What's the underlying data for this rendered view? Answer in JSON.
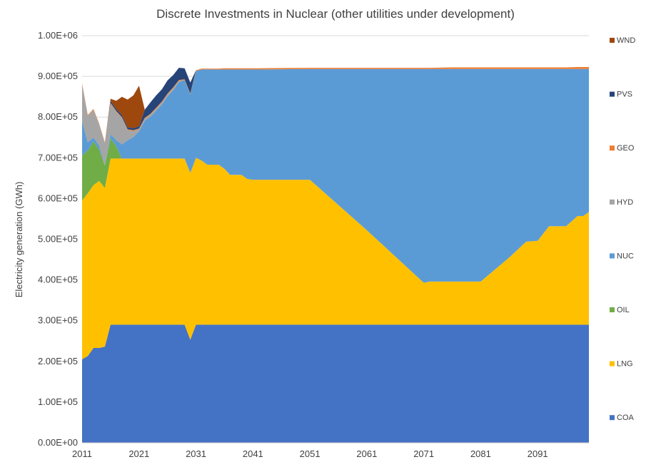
{
  "chart_data": {
    "type": "area",
    "stacked": true,
    "title": "Discrete Investments in Nuclear (other utilities under development)",
    "ylabel": "Electricity generation (GWh)",
    "xlabel": "",
    "ylim": [
      0,
      1000000
    ],
    "yticks": [
      "0.00E+00",
      "1.00E+05",
      "2.00E+05",
      "3.00E+05",
      "4.00E+05",
      "5.00E+05",
      "6.00E+05",
      "7.00E+05",
      "8.00E+05",
      "9.00E+05",
      "1.00E+06"
    ],
    "xticks": [
      "2011",
      "2021",
      "2031",
      "2041",
      "2051",
      "2061",
      "2071",
      "2081",
      "2091"
    ],
    "grid": "horizontal",
    "legend_position": "right",
    "x": [
      2011,
      2012,
      2013,
      2014,
      2015,
      2016,
      2017,
      2018,
      2019,
      2020,
      2021,
      2022,
      2023,
      2024,
      2025,
      2026,
      2027,
      2028,
      2029,
      2030,
      2031,
      2032,
      2033,
      2034,
      2035,
      2036,
      2037,
      2038,
      2039,
      2040,
      2041,
      2042,
      2051,
      2061,
      2071,
      2072,
      2076,
      2080,
      2081,
      2086,
      2089,
      2091,
      2093,
      2096,
      2098,
      2099,
      2100
    ],
    "series": [
      {
        "name": "COA",
        "color": "#4472c4",
        "values": [
          205000,
          213000,
          233000,
          233000,
          236000,
          290000,
          290000,
          290000,
          290000,
          290000,
          290000,
          290000,
          290000,
          290000,
          290000,
          290000,
          290000,
          290000,
          290000,
          253000,
          290000,
          290000,
          290000,
          290000,
          290000,
          290000,
          290000,
          290000,
          290000,
          290000,
          290000,
          290000,
          290000,
          290000,
          290000,
          290000,
          290000,
          290000,
          290000,
          290000,
          290000,
          290000,
          290000,
          290000,
          290000,
          290000,
          290000
        ]
      },
      {
        "name": "LNG",
        "color": "#ffc000",
        "values": [
          390000,
          400000,
          400000,
          410000,
          390000,
          408000,
          408000,
          408000,
          408000,
          408000,
          408000,
          408000,
          408000,
          408000,
          408000,
          408000,
          408000,
          408000,
          408000,
          410000,
          410000,
          403000,
          393000,
          393000,
          393000,
          383000,
          368000,
          368000,
          368000,
          358000,
          356000,
          356000,
          356000,
          232000,
          103000,
          106000,
          106000,
          106000,
          106000,
          165000,
          204000,
          206000,
          242000,
          242000,
          267000,
          267000,
          277000
        ]
      },
      {
        "name": "OIL",
        "color": "#70ad47",
        "values": [
          110000,
          105000,
          107000,
          77000,
          55000,
          50000,
          30000,
          0,
          0,
          0,
          0,
          0,
          0,
          0,
          0,
          0,
          0,
          0,
          0,
          0,
          0,
          0,
          0,
          0,
          0,
          0,
          0,
          0,
          0,
          0,
          0,
          0,
          0,
          0,
          0,
          0,
          0,
          0,
          0,
          0,
          0,
          0,
          0,
          0,
          0,
          0,
          0
        ]
      },
      {
        "name": "NUC",
        "color": "#5b9bd5",
        "values": [
          85000,
          20000,
          10000,
          10000,
          0,
          10000,
          15000,
          35000,
          45000,
          53000,
          67000,
          93000,
          103000,
          118000,
          133000,
          153000,
          168000,
          188000,
          193000,
          193000,
          213000,
          224000,
          234000,
          234000,
          234000,
          244000,
          259000,
          259000,
          259000,
          269000,
          271000,
          271000,
          272000,
          396000,
          525000,
          522000,
          522000,
          522000,
          522000,
          463000,
          424000,
          422000,
          386000,
          386000,
          361000,
          361000,
          351000
        ]
      },
      {
        "name": "HYD",
        "color": "#a5a5a5",
        "values": [
          90000,
          65000,
          68000,
          52000,
          55000,
          75000,
          70000,
          65000,
          25000,
          15000,
          5000,
          5000,
          5000,
          5000,
          5000,
          5000,
          5000,
          3000,
          0,
          0,
          0,
          0,
          0,
          0,
          0,
          0,
          0,
          0,
          0,
          0,
          0,
          0,
          0,
          0,
          0,
          0,
          0,
          0,
          0,
          0,
          0,
          0,
          0,
          0,
          0,
          0,
          0
        ]
      },
      {
        "name": "GEO",
        "color": "#ed7d31",
        "values": [
          3000,
          2000,
          2000,
          2000,
          2000,
          2000,
          2000,
          2000,
          2000,
          2000,
          2000,
          2000,
          2000,
          2000,
          2000,
          2000,
          2000,
          2000,
          2000,
          2000,
          2000,
          2000,
          2000,
          2000,
          2000,
          3000,
          3000,
          3000,
          3000,
          3000,
          3000,
          3000,
          3000,
          3000,
          3000,
          3000,
          4000,
          4000,
          4000,
          4000,
          4000,
          4000,
          4000,
          4000,
          5000,
          5000,
          5000
        ]
      },
      {
        "name": "PVS",
        "color": "#264478",
        "values": [
          0,
          0,
          0,
          0,
          0,
          5000,
          5000,
          5000,
          5000,
          5000,
          5000,
          20000,
          28000,
          30000,
          30000,
          32000,
          30000,
          30000,
          27000,
          27000,
          0,
          0,
          0,
          0,
          0,
          0,
          0,
          0,
          0,
          0,
          0,
          0,
          0,
          0,
          0,
          0,
          0,
          0,
          0,
          0,
          0,
          0,
          0,
          0,
          0,
          0,
          0
        ]
      },
      {
        "name": "WND",
        "color": "#9e480e",
        "values": [
          0,
          0,
          0,
          0,
          0,
          5000,
          20000,
          45000,
          68000,
          80000,
          100000,
          0,
          0,
          0,
          0,
          0,
          0,
          0,
          0,
          0,
          0,
          0,
          0,
          0,
          0,
          0,
          0,
          0,
          0,
          0,
          0,
          0,
          0,
          0,
          0,
          0,
          0,
          0,
          0,
          0,
          0,
          0,
          0,
          0,
          0,
          0,
          0
        ]
      }
    ]
  }
}
